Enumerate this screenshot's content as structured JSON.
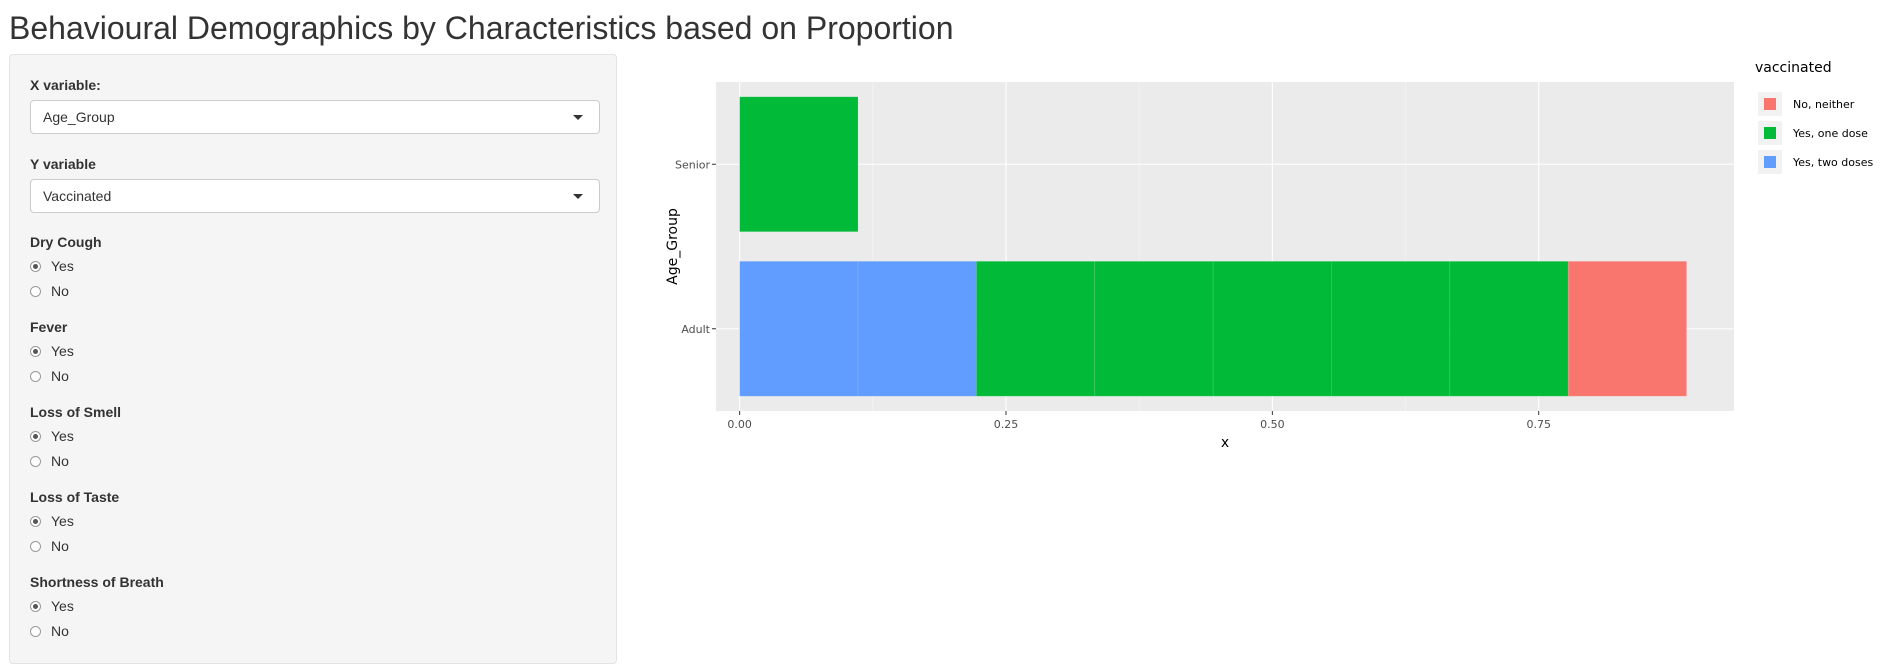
{
  "page": {
    "title": "Behavioural Demographics by Characteristics based on Proportion"
  },
  "controls": {
    "x_variable": {
      "label": "X variable:",
      "value": "Age_Group"
    },
    "y_variable": {
      "label": "Y variable",
      "value": "Vaccinated"
    },
    "radio_groups": [
      {
        "label": "Dry Cough",
        "options": [
          "Yes",
          "No"
        ],
        "selected": "Yes"
      },
      {
        "label": "Fever",
        "options": [
          "Yes",
          "No"
        ],
        "selected": "Yes"
      },
      {
        "label": "Loss of Smell",
        "options": [
          "Yes",
          "No"
        ],
        "selected": "Yes"
      },
      {
        "label": "Loss of Taste",
        "options": [
          "Yes",
          "No"
        ],
        "selected": "Yes"
      },
      {
        "label": "Shortness of Breath",
        "options": [
          "Yes",
          "No"
        ],
        "selected": "Yes"
      }
    ]
  },
  "chart_data": {
    "type": "bar",
    "orientation": "horizontal",
    "stacked": true,
    "xlabel": "x",
    "ylabel": "Age_Group",
    "xlim": [
      -0.0222,
      0.9333
    ],
    "x_ticks": [
      "0.00",
      "0.25",
      "0.50",
      "0.75"
    ],
    "x_tick_values": [
      0,
      0.25,
      0.5,
      0.75
    ],
    "categories": [
      "Adult",
      "Senior"
    ],
    "legend_title": "vaccinated",
    "legend_position": "right",
    "grid": true,
    "series": [
      {
        "name": "Yes, two doses",
        "color": "#619CFF",
        "values": [
          0.2222,
          0
        ]
      },
      {
        "name": "Yes, one dose",
        "color": "#00BA38",
        "values": [
          0.5556,
          0.1111
        ]
      },
      {
        "name": "No, neither",
        "color": "#F8766D",
        "values": [
          0.1111,
          0
        ]
      }
    ],
    "segments": [
      {
        "category": "Adult",
        "series": "Yes, two doses",
        "values": [
          0.1111,
          0.1111
        ]
      },
      {
        "category": "Adult",
        "series": "Yes, one dose",
        "values": [
          0.1111,
          0.1111,
          0.1111,
          0.1111,
          0.1111
        ]
      },
      {
        "category": "Adult",
        "series": "No, neither",
        "values": [
          0.1111
        ]
      },
      {
        "category": "Senior",
        "series": "Yes, one dose",
        "values": [
          0.1111
        ]
      }
    ]
  }
}
